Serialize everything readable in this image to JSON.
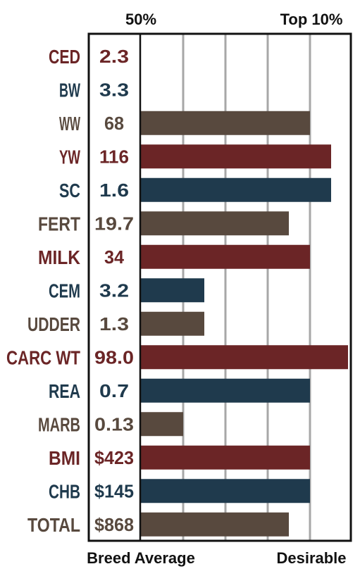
{
  "chart_data": {
    "type": "bar",
    "orientation": "horizontal",
    "top_labels": {
      "left": "50%",
      "right": "Top 10%"
    },
    "bottom_labels": {
      "left": "Breed Average",
      "right": "Desirable"
    },
    "grid": true,
    "bar_scale_max": 100,
    "colors": {
      "maroon": "#6b2526",
      "navy": "#1f3a4d",
      "brown": "#58493e",
      "frame": "#111111",
      "grid": "#a7a7a7"
    },
    "traits": [
      {
        "name": "CED",
        "value": "2.3",
        "bar": 0,
        "color": "maroon"
      },
      {
        "name": "BW",
        "value": "3.3",
        "bar": 0,
        "color": "navy"
      },
      {
        "name": "WW",
        "value": "68",
        "bar": 80,
        "color": "brown"
      },
      {
        "name": "YW",
        "value": "116",
        "bar": 90,
        "color": "maroon"
      },
      {
        "name": "SC",
        "value": "1.6",
        "bar": 90,
        "color": "navy"
      },
      {
        "name": "FERT",
        "value": "19.7",
        "bar": 70,
        "color": "brown"
      },
      {
        "name": "MILK",
        "value": "34",
        "bar": 80,
        "color": "maroon"
      },
      {
        "name": "CEM",
        "value": "3.2",
        "bar": 30,
        "color": "navy"
      },
      {
        "name": "UDDER",
        "value": "1.3",
        "bar": 30,
        "color": "brown"
      },
      {
        "name": "CARC WT",
        "value": "98.0",
        "bar": 98,
        "color": "maroon"
      },
      {
        "name": "REA",
        "value": "0.7",
        "bar": 80,
        "color": "navy"
      },
      {
        "name": "MARB",
        "value": "0.13",
        "bar": 20,
        "color": "brown"
      },
      {
        "name": "BMI",
        "value": "$423",
        "bar": 80,
        "color": "maroon"
      },
      {
        "name": "CHB",
        "value": "$145",
        "bar": 80,
        "color": "navy"
      },
      {
        "name": "TOTAL",
        "value": "$868",
        "bar": 70,
        "color": "brown"
      }
    ]
  }
}
